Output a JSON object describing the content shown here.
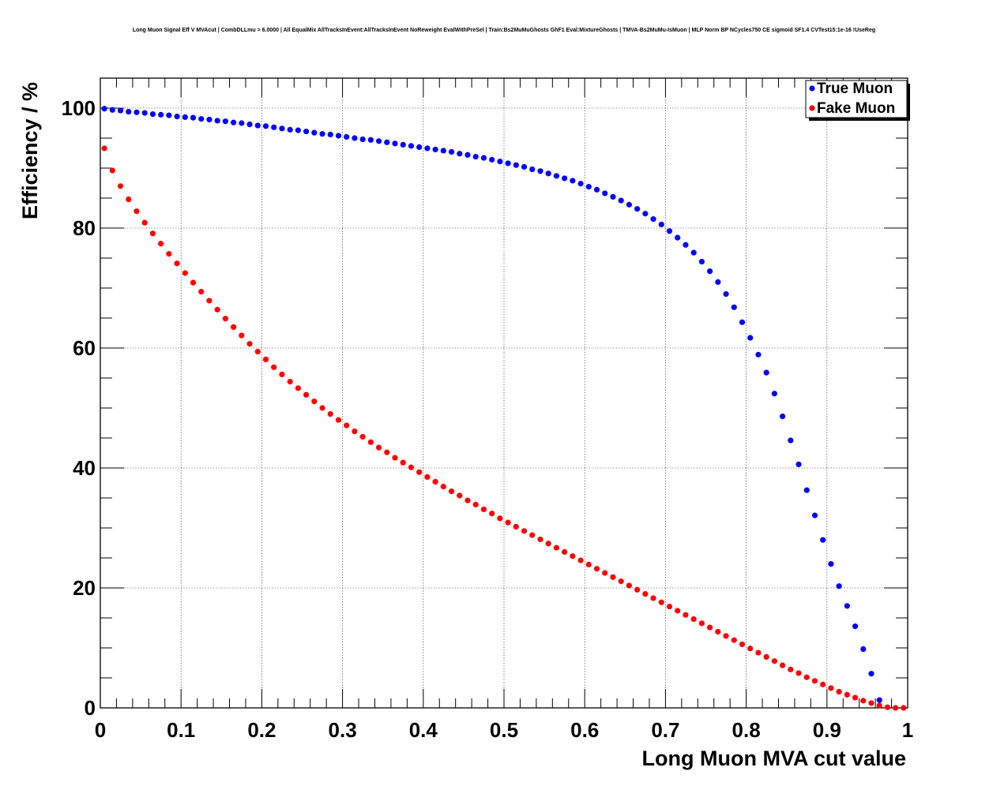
{
  "chart_data": {
    "type": "scatter",
    "title": "Long Muon Signal Eff V MVAcut | CombDLLmu > 6.0000 | All EqualMix AllTracksInEvent:AllTracksInEvent NoReweight EvalWithPreSel | Train:Bs2MuMuGhosts GhF1 Eval:MixtureGhosts | TMVA-Bs2MuMu-IsMuon | MLP Norm BP NCycles750 CE sigmoid SF1.4 CVTest15:1e-16 !UseReg",
    "xlabel": "Long Muon MVA cut value",
    "ylabel": "Efficiency / %",
    "xlim": [
      0,
      1
    ],
    "ylim": [
      0,
      105
    ],
    "x_ticks": [
      "0",
      "0.1",
      "0.2",
      "0.3",
      "0.4",
      "0.5",
      "0.6",
      "0.7",
      "0.8",
      "0.9",
      "1"
    ],
    "y_ticks": [
      "0",
      "20",
      "40",
      "60",
      "80",
      "100"
    ],
    "grid": true,
    "legend_position": "top-right",
    "series": [
      {
        "name": "True Muon",
        "color": "#0000ff",
        "x": [
          0.005,
          0.015,
          0.025,
          0.035,
          0.045,
          0.055,
          0.065,
          0.075,
          0.085,
          0.095,
          0.105,
          0.115,
          0.125,
          0.135,
          0.145,
          0.155,
          0.165,
          0.175,
          0.185,
          0.195,
          0.205,
          0.215,
          0.225,
          0.235,
          0.245,
          0.255,
          0.265,
          0.275,
          0.285,
          0.295,
          0.305,
          0.315,
          0.325,
          0.335,
          0.345,
          0.355,
          0.365,
          0.375,
          0.385,
          0.395,
          0.405,
          0.415,
          0.425,
          0.435,
          0.445,
          0.455,
          0.465,
          0.475,
          0.485,
          0.495,
          0.505,
          0.515,
          0.525,
          0.535,
          0.545,
          0.555,
          0.565,
          0.575,
          0.585,
          0.595,
          0.605,
          0.615,
          0.625,
          0.635,
          0.645,
          0.655,
          0.665,
          0.675,
          0.685,
          0.695,
          0.705,
          0.715,
          0.725,
          0.735,
          0.745,
          0.755,
          0.765,
          0.775,
          0.785,
          0.795,
          0.805,
          0.815,
          0.825,
          0.835,
          0.845,
          0.855,
          0.865,
          0.875,
          0.885,
          0.895,
          0.905,
          0.915,
          0.925,
          0.935,
          0.945,
          0.955,
          0.965,
          0.975,
          0.985,
          0.995
        ],
        "y": [
          99.9,
          99.7,
          99.6,
          99.4,
          99.3,
          99.2,
          99.0,
          98.9,
          98.8,
          98.6,
          98.5,
          98.4,
          98.2,
          98.1,
          97.9,
          97.8,
          97.6,
          97.5,
          97.3,
          97.1,
          97.0,
          96.8,
          96.6,
          96.4,
          96.3,
          96.1,
          95.9,
          95.7,
          95.6,
          95.4,
          95.2,
          95.0,
          94.8,
          94.7,
          94.5,
          94.3,
          94.1,
          93.9,
          93.7,
          93.5,
          93.3,
          93.1,
          92.9,
          92.7,
          92.4,
          92.2,
          91.9,
          91.7,
          91.4,
          91.1,
          90.8,
          90.5,
          90.2,
          89.8,
          89.5,
          89.1,
          88.7,
          88.3,
          87.9,
          87.4,
          86.9,
          86.4,
          85.8,
          85.2,
          84.6,
          83.9,
          83.2,
          82.4,
          81.5,
          80.6,
          79.5,
          78.4,
          77.2,
          75.9,
          74.4,
          72.8,
          71.0,
          69.0,
          66.8,
          64.3,
          61.7,
          58.9,
          55.9,
          52.4,
          48.6,
          44.6,
          40.6,
          36.3,
          32.1,
          28.0,
          24.0,
          20.3,
          17.0,
          13.6,
          9.8,
          5.7,
          1.3,
          0,
          0,
          0
        ]
      },
      {
        "name": "Fake Muon",
        "color": "#ff0000",
        "x": [
          0.005,
          0.015,
          0.025,
          0.035,
          0.045,
          0.055,
          0.065,
          0.075,
          0.085,
          0.095,
          0.105,
          0.115,
          0.125,
          0.135,
          0.145,
          0.155,
          0.165,
          0.175,
          0.185,
          0.195,
          0.205,
          0.215,
          0.225,
          0.235,
          0.245,
          0.255,
          0.265,
          0.275,
          0.285,
          0.295,
          0.305,
          0.315,
          0.325,
          0.335,
          0.345,
          0.355,
          0.365,
          0.375,
          0.385,
          0.395,
          0.405,
          0.415,
          0.425,
          0.435,
          0.445,
          0.455,
          0.465,
          0.475,
          0.485,
          0.495,
          0.505,
          0.515,
          0.525,
          0.535,
          0.545,
          0.555,
          0.565,
          0.575,
          0.585,
          0.595,
          0.605,
          0.615,
          0.625,
          0.635,
          0.645,
          0.655,
          0.665,
          0.675,
          0.685,
          0.695,
          0.705,
          0.715,
          0.725,
          0.735,
          0.745,
          0.755,
          0.765,
          0.775,
          0.785,
          0.795,
          0.805,
          0.815,
          0.825,
          0.835,
          0.845,
          0.855,
          0.865,
          0.875,
          0.885,
          0.895,
          0.905,
          0.915,
          0.925,
          0.935,
          0.945,
          0.955,
          0.965,
          0.975,
          0.985,
          0.995
        ],
        "y": [
          93.3,
          89.6,
          87.0,
          84.8,
          82.8,
          80.9,
          79.1,
          77.4,
          75.7,
          74.1,
          72.5,
          70.9,
          69.4,
          67.9,
          66.4,
          64.9,
          63.5,
          62.1,
          60.7,
          59.4,
          58.1,
          56.8,
          55.6,
          54.4,
          53.3,
          52.2,
          51.1,
          50.0,
          49.0,
          48.0,
          47.1,
          46.1,
          45.2,
          44.3,
          43.4,
          42.6,
          41.7,
          40.9,
          40.1,
          39.3,
          38.5,
          37.7,
          36.9,
          36.1,
          35.4,
          34.6,
          33.9,
          33.1,
          32.4,
          31.6,
          30.9,
          30.2,
          29.5,
          28.8,
          28.1,
          27.4,
          26.7,
          26.0,
          25.3,
          24.6,
          23.9,
          23.2,
          22.5,
          21.8,
          21.1,
          20.4,
          19.7,
          19.0,
          18.3,
          17.6,
          16.9,
          16.2,
          15.5,
          14.8,
          14.1,
          13.4,
          12.7,
          12.0,
          11.3,
          10.6,
          9.9,
          9.2,
          8.5,
          7.8,
          7.1,
          6.4,
          5.8,
          5.1,
          4.5,
          3.9,
          3.3,
          2.7,
          2.2,
          1.7,
          1.2,
          0.8,
          0.4,
          0.1,
          0.0,
          0.0
        ]
      }
    ]
  }
}
